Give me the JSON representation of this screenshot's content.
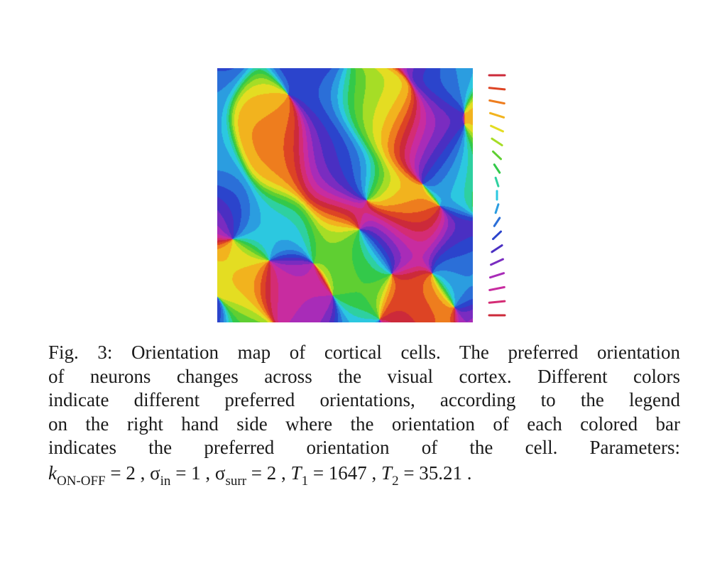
{
  "figure": {
    "caption_lines": [
      "Fig. 3: Orientation map of cortical cells. The preferred orientation",
      "of neurons changes across the visual cortex. Different colors",
      "indicate different preferred orientations, according to the legend",
      "on the right hand side where the orientation of each colored bar",
      "indicates the preferred orientation of the cell. Parameters:"
    ],
    "params": {
      "k_symbol": "k",
      "k_sub": "ON-OFF",
      "k_value": "= 2 ,",
      "sigma_in_symbol": "σ",
      "sigma_in_sub": "in",
      "sigma_in_value": "= 1 ,",
      "sigma_surr_symbol": "σ",
      "sigma_surr_sub": "surr",
      "sigma_surr_value": "= 2 ,",
      "t1_symbol": "T",
      "t1_sub": "1",
      "t1_value": "= 1647 ,",
      "t2_symbol": "T",
      "t2_sub": "2",
      "t2_value": "= 35.21 ."
    },
    "legend_colors": [
      "#cc2a3a",
      "#dd4424",
      "#ee7d1e",
      "#f2b31e",
      "#e4dd22",
      "#a6dd26",
      "#5fcf32",
      "#33c94a",
      "#2ed0a0",
      "#2cc8e0",
      "#2b9de0",
      "#2b6fd8",
      "#2b44cc",
      "#4a2fc2",
      "#7a2cc0",
      "#a82cb8",
      "#c82ca0",
      "#d42c74",
      "#cc2a3a"
    ]
  }
}
